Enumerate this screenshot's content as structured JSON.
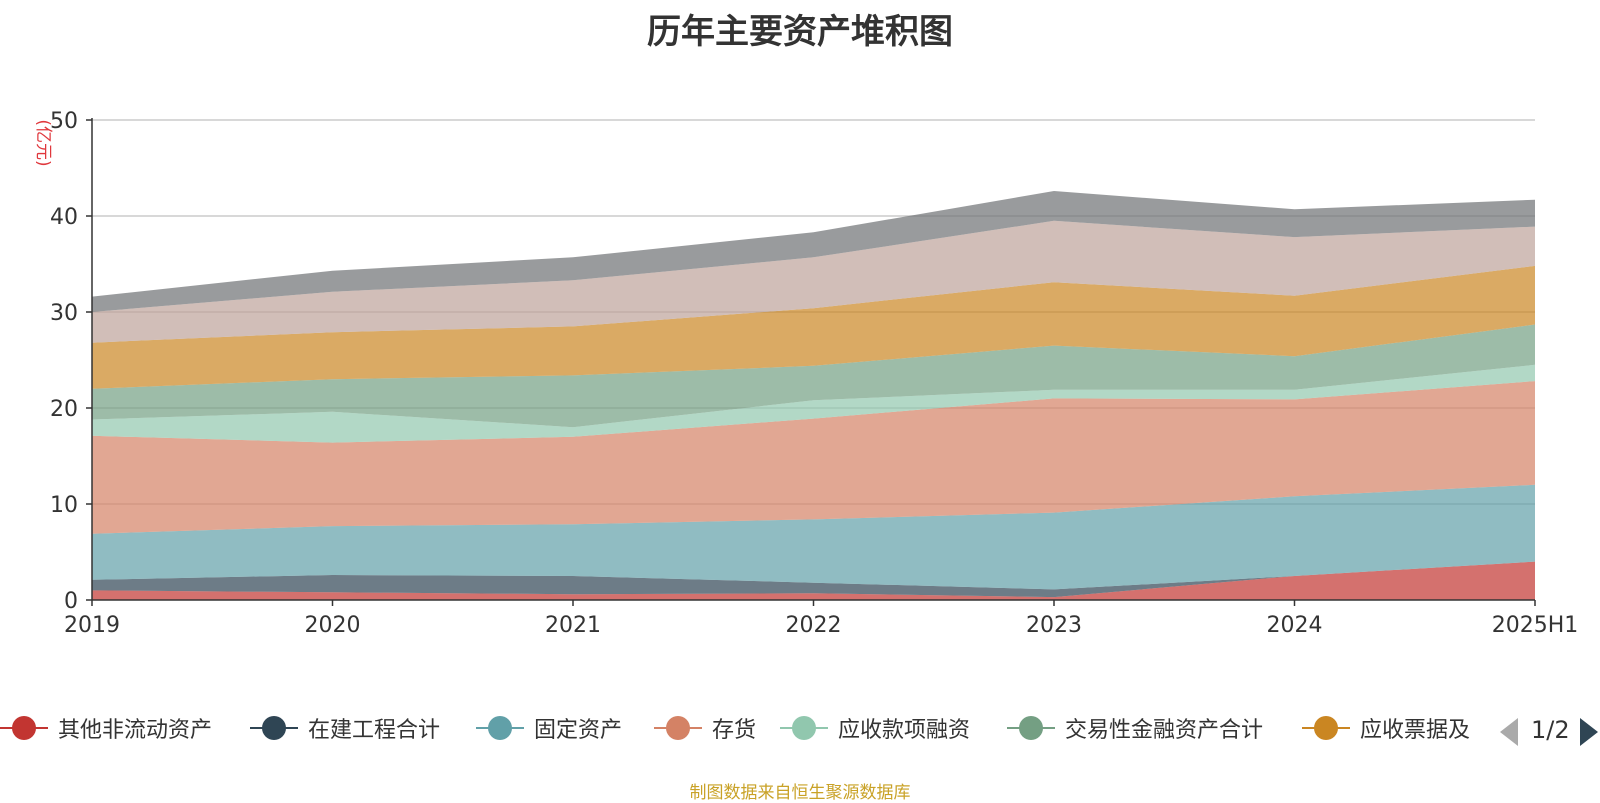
{
  "chart_data": {
    "type": "area",
    "stacked": true,
    "title": "历年主要资产堆积图",
    "ylabel": "(亿元)",
    "ylim": [
      0,
      50
    ],
    "yticks": [
      0,
      10,
      20,
      30,
      40,
      50
    ],
    "grid": true,
    "categories": [
      "2019",
      "2020",
      "2021",
      "2022",
      "2023",
      "2024",
      "2025H1"
    ],
    "series": [
      {
        "name": "其他非流动资产",
        "color": "#c23531",
        "values": [
          1.0,
          0.8,
          0.6,
          0.7,
          0.3,
          2.5,
          4.0
        ]
      },
      {
        "name": "在建工程合计",
        "color": "#2f4554",
        "values": [
          1.1,
          1.8,
          1.9,
          1.1,
          0.8,
          0.0,
          0.0
        ]
      },
      {
        "name": "固定资产",
        "color": "#61a0a8",
        "values": [
          4.8,
          5.1,
          5.4,
          6.6,
          8.0,
          8.3,
          8.0
        ]
      },
      {
        "name": "存货",
        "color": "#d48265",
        "values": [
          10.2,
          8.7,
          9.1,
          10.5,
          11.9,
          10.1,
          10.8
        ]
      },
      {
        "name": "应收款项融资",
        "color": "#91c7ae",
        "values": [
          1.7,
          3.2,
          1.0,
          1.9,
          0.9,
          1.0,
          1.7
        ]
      },
      {
        "name": "交易性金融资产合计",
        "color": "#749f83",
        "values": [
          3.2,
          3.4,
          5.4,
          3.6,
          4.6,
          3.5,
          4.2
        ]
      },
      {
        "name": "应收票据及",
        "color": "#ca8622",
        "values": [
          4.8,
          4.9,
          5.1,
          6.0,
          6.6,
          6.3,
          6.1
        ]
      },
      {
        "name": "",
        "color": "#bda29a",
        "values": [
          3.2,
          4.2,
          4.8,
          5.3,
          6.4,
          6.1,
          4.1
        ]
      },
      {
        "name": "",
        "color": "#6e7074",
        "values": [
          1.6,
          2.2,
          2.4,
          2.6,
          3.1,
          2.9,
          2.8
        ]
      }
    ]
  },
  "legend": {
    "items": [
      {
        "label": "其他非流动资产",
        "color": "#c23531"
      },
      {
        "label": "在建工程合计",
        "color": "#2f4554"
      },
      {
        "label": "固定资产",
        "color": "#61a0a8"
      },
      {
        "label": "存货",
        "color": "#d48265"
      },
      {
        "label": "应收款项融资",
        "color": "#91c7ae"
      },
      {
        "label": "交易性金融资产合计",
        "color": "#749f83"
      },
      {
        "label": "应收票据及",
        "color": "#ca8622"
      }
    ],
    "page_indicator": "1/2"
  },
  "source_note": "制图数据来自恒生聚源数据库"
}
